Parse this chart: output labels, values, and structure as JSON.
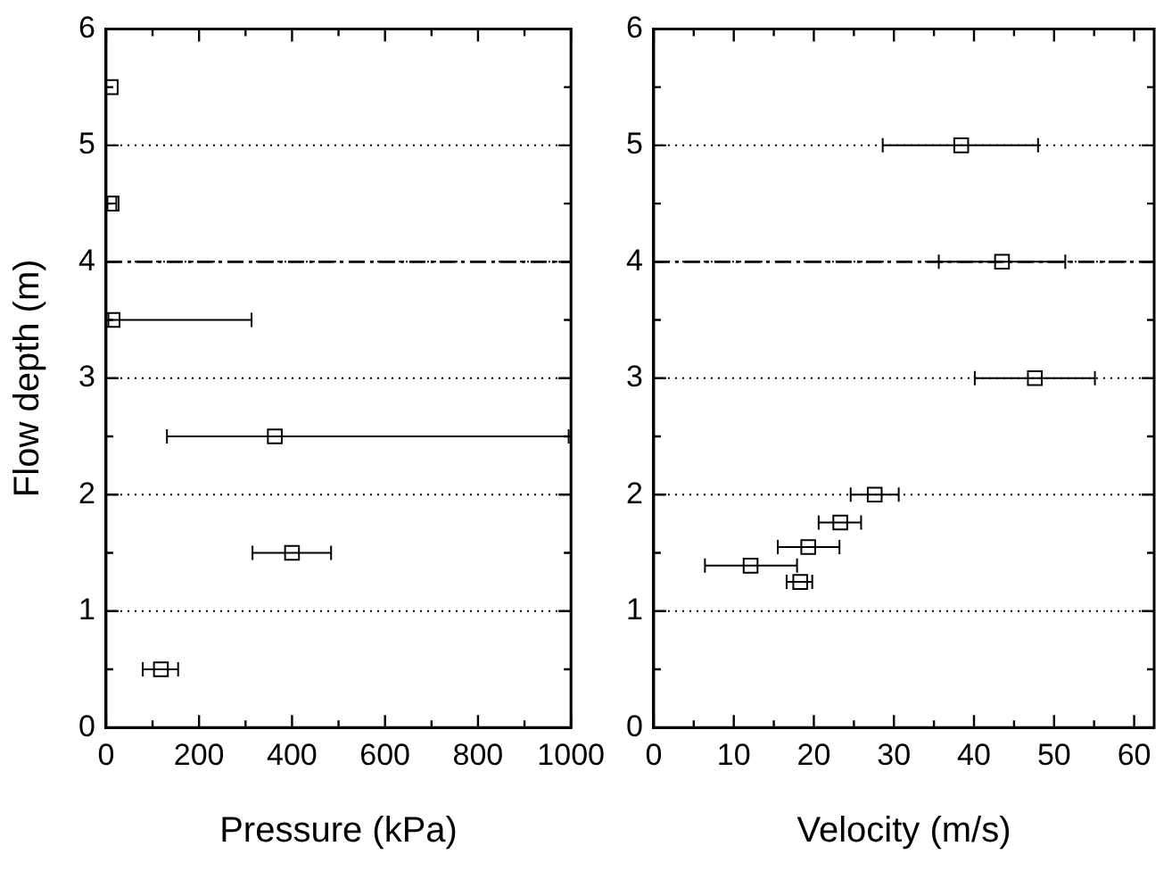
{
  "chart_data": [
    {
      "type": "scatter",
      "xlabel": "Pressure (kPa)",
      "ylabel": "Flow depth (m)",
      "color": "#000000",
      "marker": "square",
      "grid": "y",
      "x": [
        10,
        12,
        14,
        363,
        400,
        118
      ],
      "values": [
        5.5,
        4.5,
        3.5,
        2.5,
        1.5,
        0.5
      ],
      "xerrors": [
        null,
        [
          3,
          22
        ],
        [
          5,
          313
        ],
        [
          131,
          995
        ],
        [
          315,
          484
        ],
        [
          79,
          155
        ]
      ],
      "xlim": [
        0,
        1000
      ],
      "xticks": [
        0,
        {
          "value": 100,
          "label": null
        },
        200,
        {
          "value": 300,
          "label": null
        },
        400,
        {
          "value": 500,
          "label": null
        },
        600,
        {
          "value": 700,
          "label": null
        },
        800,
        {
          "value": 900,
          "label": null
        },
        1000
      ],
      "ylim": [
        0,
        6
      ],
      "yticks": [
        0,
        {
          "value": 0.5,
          "label": null
        },
        1,
        {
          "value": 1.5,
          "label": null
        },
        2,
        {
          "value": 2.5,
          "label": null
        },
        3,
        {
          "value": 3.5,
          "label": null
        },
        4,
        {
          "value": 4.5,
          "label": null
        },
        5,
        {
          "value": 5.5,
          "label": null
        },
        6
      ],
      "ref_lines": [
        {
          "axis": "y",
          "value": 4,
          "line_style": "dashed",
          "color": "#000000"
        }
      ]
    },
    {
      "type": "scatter",
      "xlabel": "Velocity (m/s)",
      "color": "#000000",
      "marker": "square",
      "grid": "y",
      "x": [
        38.4,
        43.5,
        47.6,
        27.6,
        23.3,
        19.3,
        12.1,
        18.3
      ],
      "values": [
        5,
        4,
        3,
        2,
        1.76,
        1.55,
        1.39,
        1.25
      ],
      "xerrors": [
        [
          28.6,
          48.0
        ],
        [
          35.6,
          51.4
        ],
        [
          40.1,
          55.1
        ],
        [
          24.6,
          30.6
        ],
        [
          20.6,
          25.9
        ],
        [
          15.5,
          23.2
        ],
        [
          6.4,
          17.9
        ],
        [
          16.6,
          19.8
        ]
      ],
      "xlim": [
        0,
        62.5
      ],
      "xticks": [
        0,
        {
          "value": 5,
          "label": null
        },
        10,
        {
          "value": 15,
          "label": null
        },
        20,
        {
          "value": 25,
          "label": null
        },
        30,
        {
          "value": 35,
          "label": null
        },
        40,
        {
          "value": 45,
          "label": null
        },
        50,
        {
          "value": 55,
          "label": null
        },
        60
      ],
      "ylim": [
        0,
        6
      ],
      "yticks": [
        0,
        {
          "value": 0.5,
          "label": null
        },
        1,
        {
          "value": 1.5,
          "label": null
        },
        2,
        {
          "value": 2.5,
          "label": null
        },
        3,
        {
          "value": 3.5,
          "label": null
        },
        4,
        {
          "value": 4.5,
          "label": null
        },
        5,
        {
          "value": 5.5,
          "label": null
        },
        6
      ],
      "ref_lines": [
        {
          "axis": "y",
          "value": 4,
          "line_style": "dashed",
          "color": "#000000"
        }
      ]
    }
  ]
}
